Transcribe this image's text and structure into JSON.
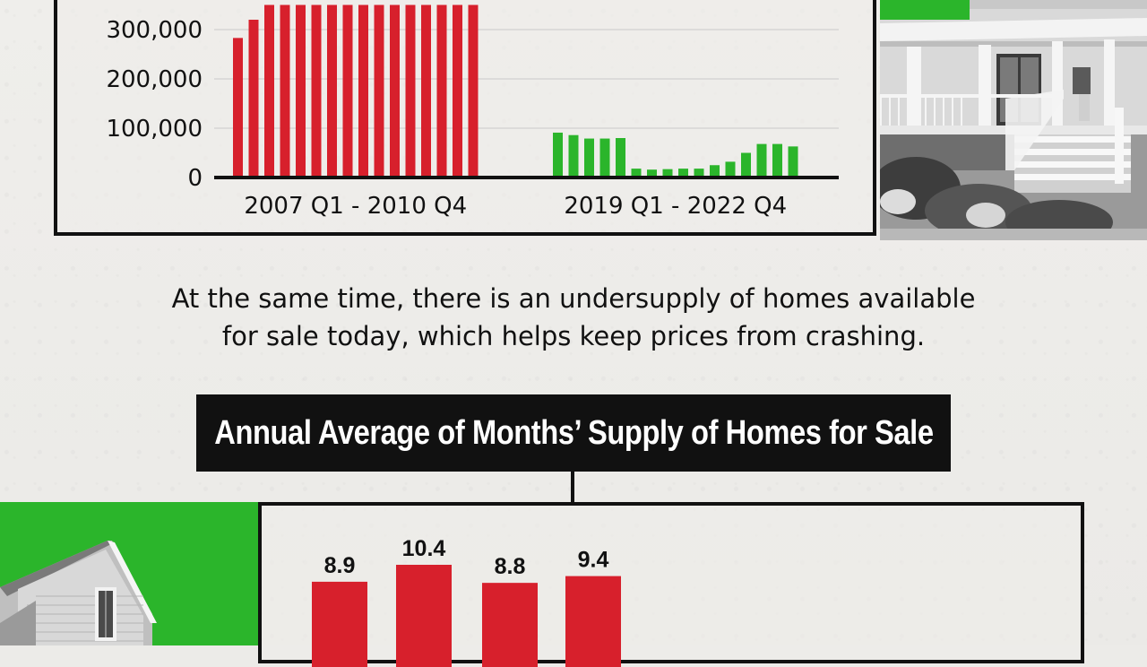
{
  "statement": {
    "line1": "At the same time, there is an undersupply of  homes available",
    "line2": "for sale today, which helps keep prices from crashing."
  },
  "colors": {
    "red": "#d7202c",
    "green": "#2bb52b",
    "black": "#111111",
    "background": "#ecebe8"
  },
  "chart_data": [
    {
      "type": "bar",
      "title": "",
      "ylim": [
        0,
        350000
      ],
      "y_ticks": [
        {
          "value": 0,
          "label": "0"
        },
        {
          "value": 100000,
          "label": "100,000"
        },
        {
          "value": 200000,
          "label": "200,000"
        },
        {
          "value": 300000,
          "label": "300,000"
        }
      ],
      "grid": true,
      "groups": [
        {
          "label": "2007 Q1 - 2010 Q4",
          "color": "#d7202c",
          "values": [
            283000,
            320000,
            350000,
            350000,
            350000,
            350000,
            350000,
            350000,
            350000,
            350000,
            350000,
            350000,
            350000,
            350000,
            350000,
            350000
          ]
        },
        {
          "label": "2019 Q1 - 2022 Q4",
          "color": "#2bb52b",
          "values": [
            91000,
            86000,
            79000,
            79000,
            80000,
            18000,
            16000,
            17000,
            18000,
            18000,
            25000,
            32000,
            50000,
            68000,
            68000,
            63000
          ]
        }
      ]
    },
    {
      "type": "bar",
      "title": "Annual Average of Months’ Supply of Homes for Sale",
      "color": "#d7202c",
      "values": [
        8.9,
        10.4,
        8.8,
        9.4
      ],
      "data_labels": [
        "8.9",
        "10.4",
        "8.8",
        "9.4"
      ]
    }
  ]
}
